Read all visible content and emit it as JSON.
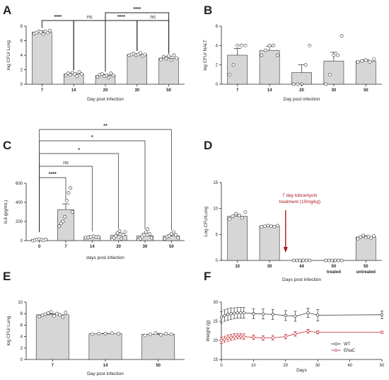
{
  "chart_data": [
    {
      "panel": "A",
      "type": "bar",
      "categories": [
        "7",
        "14",
        "20",
        "30",
        "50"
      ],
      "values": [
        7.2,
        1.4,
        1.2,
        4.1,
        3.6
      ],
      "errors": [
        0.15,
        0.15,
        0.15,
        0.1,
        0.25
      ],
      "points": [
        [
          7.0,
          7.1,
          7.3,
          7.2,
          6.9,
          7.3,
          7.1,
          7.4
        ],
        [
          1.2,
          1.5,
          1.3,
          1.6,
          1.4,
          1.1,
          1.7,
          1.4
        ],
        [
          1.0,
          1.3,
          1.4,
          1.1,
          1.2,
          0.9,
          1.5,
          1.2
        ],
        [
          4.0,
          4.1,
          4.2,
          4.0,
          4.1,
          4.3,
          3.9,
          4.1
        ],
        [
          3.4,
          3.8,
          3.5,
          3.9,
          3.3,
          4.0,
          3.6
        ]
      ],
      "ylabel": "log CFU/ Lung",
      "xlabel": "Day post infection",
      "ylim": [
        0,
        8
      ],
      "yticks": [
        "0",
        "2",
        "4",
        "6",
        "8"
      ],
      "comparisons": [
        {
          "from": 0,
          "to": 1,
          "label": "****"
        },
        {
          "from": 1,
          "to": 2,
          "label": "ns"
        },
        {
          "from": 2,
          "to": 4,
          "label": "****"
        },
        {
          "from": 2,
          "to": 3,
          "label": "****"
        },
        {
          "from": 3,
          "to": 4,
          "label": "ns"
        }
      ]
    },
    {
      "panel": "B",
      "type": "bar",
      "categories": [
        "7",
        "14",
        "20",
        "30",
        "50"
      ],
      "values": [
        3.0,
        3.5,
        1.2,
        2.4,
        2.4
      ],
      "errors": [
        0.7,
        0.4,
        0.8,
        0.9,
        0.15
      ],
      "points": [
        [
          1.0,
          2.0,
          4.0,
          4.0,
          4.0
        ],
        [
          3.0,
          3.5,
          4.0,
          4.0,
          3.0
        ],
        [
          0.0,
          0.0,
          0.0,
          2.0,
          4.0
        ],
        [
          0.0,
          1.0,
          3.0,
          3.0,
          5.0
        ],
        [
          2.3,
          2.4,
          2.5,
          2.3,
          2.6
        ]
      ],
      "ylabel": "log CFU/ NALT",
      "xlabel": "Day post infection",
      "ylim": [
        0,
        6
      ],
      "yticks": [
        "0",
        "2",
        "4",
        "6"
      ],
      "comparisons": []
    },
    {
      "panel": "C",
      "type": "bar",
      "categories": [
        "0",
        "7",
        "14",
        "20",
        "30",
        "50"
      ],
      "values": [
        10,
        325,
        40,
        55,
        50,
        48
      ],
      "errors": [
        5,
        60,
        10,
        25,
        25,
        15
      ],
      "points": [
        [
          0,
          5,
          10,
          15,
          8,
          3,
          12
        ],
        [
          150,
          180,
          200,
          250,
          420,
          500,
          550,
          300
        ],
        [
          30,
          35,
          40,
          45,
          38,
          42
        ],
        [
          10,
          30,
          50,
          80,
          100,
          20,
          60,
          90
        ],
        [
          10,
          20,
          40,
          60,
          90,
          120,
          70,
          30
        ],
        [
          20,
          40,
          50,
          70,
          90,
          60,
          30
        ]
      ],
      "ylabel": "IL6 (pg/mL)",
      "xlabel": "days post infection",
      "ylim": [
        0,
        600
      ],
      "yticks": [
        "0",
        "200",
        "400",
        "600"
      ],
      "comparisons": [
        {
          "from": 0,
          "to": 1,
          "label": "****"
        },
        {
          "from": 0,
          "to": 2,
          "label": "ns"
        },
        {
          "from": 0,
          "to": 3,
          "label": "*"
        },
        {
          "from": 0,
          "to": 4,
          "label": "*"
        },
        {
          "from": 0,
          "to": 5,
          "label": "**"
        }
      ]
    },
    {
      "panel": "D",
      "type": "bar",
      "categories": [
        "10",
        "30",
        "44",
        "50\ntreated",
        "50\nuntreated"
      ],
      "values": [
        8.5,
        6.6,
        0,
        0,
        4.5
      ],
      "errors": [
        0.3,
        0.15,
        0,
        0,
        0.25
      ],
      "points": [
        [
          8.0,
          8.5,
          9.0,
          8.7,
          8.2,
          9.3
        ],
        [
          6.5,
          6.6,
          6.7,
          6.6,
          6.5,
          6.7
        ],
        [
          0,
          0,
          0,
          0,
          0,
          0
        ],
        [
          0,
          0,
          0,
          0,
          0,
          0
        ],
        [
          4.2,
          4.5,
          4.8,
          4.4,
          4.6,
          4.3,
          4.7
        ]
      ],
      "ylabel": "Log CFU/Lung",
      "xlabel": "Days post infection",
      "ylim": [
        0,
        15
      ],
      "yticks": [
        "0",
        "5",
        "10",
        "15"
      ],
      "annotation": {
        "line1": "7 day tobramycin",
        "line2": "treatment (10mg/kg)",
        "color": "#b0141c"
      },
      "comparisons": []
    },
    {
      "panel": "E",
      "type": "bar",
      "categories": [
        "7",
        "14",
        "50"
      ],
      "values": [
        7.8,
        4.5,
        4.4
      ],
      "errors": [
        0.15,
        0.05,
        0.15
      ],
      "points": [
        [
          7.5,
          7.7,
          7.9,
          8.1,
          8.3,
          7.6,
          8.0,
          7.8,
          7.4,
          8.2
        ],
        [
          4.4,
          4.5,
          4.5,
          4.6,
          4.5
        ],
        [
          4.2,
          4.4,
          4.6,
          4.3,
          4.5,
          4.4
        ]
      ],
      "ylabel": "log CFU/ Lung",
      "xlabel": "Day post infection",
      "ylim": [
        0,
        10
      ],
      "yticks": [
        "0",
        "2",
        "4",
        "6",
        "8",
        "10"
      ],
      "comparisons": []
    },
    {
      "panel": "F",
      "type": "line",
      "ylabel": "Weight (g)",
      "xlabel": "Days",
      "xlim": [
        0,
        50
      ],
      "ylim": [
        15,
        30
      ],
      "xticks": [
        "0",
        "10",
        "20",
        "30",
        "40",
        "50"
      ],
      "yticks": [
        "15",
        "20",
        "25",
        "30"
      ],
      "series": [
        {
          "name": "WT",
          "color": "#333333",
          "marker": "circle-open",
          "x": [
            0,
            1,
            2,
            3,
            4,
            5,
            6,
            7,
            10,
            13,
            16,
            20,
            23,
            27,
            30,
            50
          ],
          "y": [
            26.0,
            26.5,
            26.8,
            27.0,
            27.1,
            27.2,
            27.2,
            27.2,
            27.0,
            26.9,
            26.8,
            26.5,
            26.3,
            27.2,
            26.6,
            26.7
          ],
          "err": [
            1.5,
            1.5,
            1.5,
            1.5,
            1.4,
            1.4,
            1.4,
            1.4,
            1.3,
            1.3,
            1.3,
            1.3,
            1.3,
            1.2,
            1.5,
            1.0
          ]
        },
        {
          "name": "ENaC",
          "color": "#c0282d",
          "marker": "circle-open",
          "x": [
            0,
            1,
            2,
            3,
            4,
            5,
            6,
            7,
            10,
            13,
            16,
            20,
            23,
            27,
            30,
            50
          ],
          "y": [
            20.0,
            20.3,
            20.6,
            20.8,
            21.0,
            21.1,
            21.1,
            21.0,
            20.8,
            20.6,
            20.7,
            21.0,
            21.7,
            22.4,
            22.1,
            22.1
          ],
          "err": [
            0.8,
            0.8,
            0.8,
            0.8,
            0.8,
            0.7,
            0.7,
            0.7,
            0.6,
            0.6,
            0.6,
            0.6,
            0.6,
            0.5,
            0.4,
            0.3
          ]
        }
      ],
      "legend_position": "bottom-right"
    }
  ]
}
